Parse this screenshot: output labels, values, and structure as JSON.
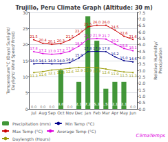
{
  "chart_data": {
    "type": "bar",
    "title": "Trujillo, Peru Climate Graph (Altitude: 30 m)",
    "ylabel": "Temperature/°C (Days/ Sunlight/\nDaylight/ Wind Speed/ Frost)",
    "y2label": "Relative Humidity/\nPrecipitation",
    "categories": [
      "Jul",
      "Aug",
      "Sep",
      "Oct",
      "Nov",
      "Dec",
      "Jan",
      "Feb",
      "Mar",
      "Apr",
      "May",
      "Jun"
    ],
    "series": [
      {
        "name": "Precipitation (mm)",
        "type": "bar",
        "axis": "y2",
        "color": "#2e8b22",
        "values": [
          0.0,
          0.0,
          0.0,
          3.0,
          0.0,
          2.1,
          7.2,
          5.3,
          1.57,
          2.1,
          2.1,
          0.0
        ],
        "value_labels": [
          "0.0",
          "0.0",
          "0.0",
          "3.0",
          "0.0",
          "2.1",
          "7.2",
          "5.3",
          "1.57",
          "2.1",
          "2.1",
          "0.0"
        ]
      },
      {
        "name": "Min Temp (°C)",
        "type": "line",
        "marker": "circle",
        "color": "#00008b",
        "values": [
          14.0,
          14.1,
          14.0,
          14.0,
          14.4,
          15.8,
          17.8,
          17.9,
          17.8,
          16.2,
          15.0,
          14.6
        ],
        "value_labels": [
          "14.0",
          "14.1",
          "14.0",
          "14.0",
          "14.4",
          "15.8",
          "17.8",
          "17.9",
          "17.8",
          "16.2",
          "15.0",
          "14.6"
        ]
      },
      {
        "name": "Max Temp (°C)",
        "type": "line",
        "marker": "circle",
        "color": "#cc0000",
        "values": [
          21.5,
          20.4,
          20.1,
          20.3,
          21.5,
          23.2,
          25.5,
          26.0,
          26.0,
          24.5,
          22.6,
          21.6
        ],
        "value_labels": [
          "21.5",
          "20.4",
          "20.1",
          "20.3",
          "21.5",
          "23.2",
          "25.5",
          "26.0",
          "26.0",
          "24.5",
          "22.6",
          "21.6"
        ]
      },
      {
        "name": "Average Temp (°C)",
        "type": "line",
        "marker": "circle",
        "color": "#dd00dd",
        "values": [
          17.8,
          17.2,
          17.0,
          17.2,
          17.9,
          19.5,
          21.7,
          21.9,
          21.7,
          20.2,
          18.8,
          18.1
        ],
        "value_labels": [
          "17.8",
          "17.2",
          "17.0",
          "17.2",
          "17.9",
          "19.5",
          "21.7",
          "21.9",
          "21.7",
          "20.2",
          "18.8",
          "18.1"
        ]
      },
      {
        "name": "Daylength (Hours)",
        "type": "line",
        "marker": "circle",
        "color": "#999900",
        "values": [
          11.3,
          11.6,
          12.1,
          12.3,
          12.6,
          12.9,
          12.9,
          12.8,
          12.4,
          11.9,
          11.5,
          11.3
        ],
        "value_labels": [
          "11.3",
          "11.6",
          "12.1",
          "12.3",
          "12.6",
          "12.9",
          "12.9",
          "12.8",
          "12.4",
          "11.9",
          "11.5",
          "11.3"
        ]
      }
    ],
    "ylim": [
      0,
      30
    ],
    "yticks": [
      0,
      5,
      10,
      15,
      20,
      25,
      30
    ],
    "y2lim": [
      0,
      7.5
    ],
    "y2ticks": [
      {
        "value": 0,
        "label": "0.0"
      },
      {
        "value": 0.5,
        "label": "0.5"
      },
      {
        "value": 1,
        "label": "1.0"
      },
      {
        "value": 1.5,
        "label": "1.5"
      },
      {
        "value": 2,
        "label": "2.0"
      },
      {
        "value": 2.5,
        "label": "2.5"
      },
      {
        "value": 3,
        "label": "3.0"
      },
      {
        "value": 3.5,
        "label": "3.5"
      },
      {
        "value": 4,
        "label": "4.0"
      },
      {
        "value": 4.5,
        "label": "4.5"
      },
      {
        "value": 5,
        "label": "5.0"
      },
      {
        "value": 5.5,
        "label": "5.5"
      },
      {
        "value": 6,
        "label": "6.0"
      },
      {
        "value": 6.5,
        "label": "6.5"
      },
      {
        "value": 7,
        "label": "7.0"
      },
      {
        "value": 7.5,
        "label": "7.5"
      }
    ],
    "grid": true,
    "data_labels": true,
    "annotations": [
      {
        "text": "ClimaTemps",
        "color": "#dd00dd"
      }
    ]
  }
}
